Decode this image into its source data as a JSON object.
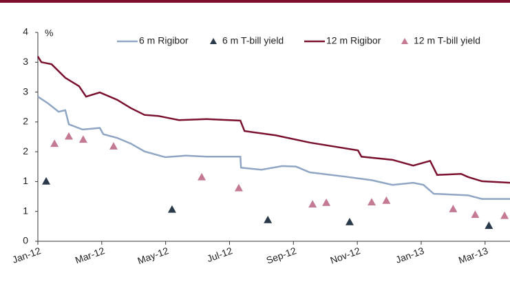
{
  "chart_data": {
    "type": "line",
    "y_unit_label": "%",
    "xlim": [
      0,
      14.78
    ],
    "xticks": [
      {
        "value": 0,
        "label": "Jan-12"
      },
      {
        "value": 2,
        "label": "Mar-12"
      },
      {
        "value": 4,
        "label": "May-12"
      },
      {
        "value": 6,
        "label": "Jul-12"
      },
      {
        "value": 8,
        "label": "Sep-12"
      },
      {
        "value": 10,
        "label": "Nov-12"
      },
      {
        "value": 12,
        "label": "Jan-13"
      },
      {
        "value": 14,
        "label": "Mar-13"
      }
    ],
    "ylim": [
      0,
      4
    ],
    "yticks": [
      0,
      {
        "value": 0.5714,
        "label": "1"
      },
      {
        "value": 1.1429,
        "label": "1"
      },
      {
        "value": 1.7143,
        "label": "2"
      },
      {
        "value": 2.2857,
        "label": "2"
      },
      {
        "value": 2.8571,
        "label": "3"
      },
      {
        "value": 3.4286,
        "label": "3"
      },
      4
    ],
    "grid": false,
    "legend": "top",
    "series": [
      {
        "name": "6 m Rigibor",
        "color": "#8ea5c3",
        "mark": "line",
        "x": [
          0,
          0.32,
          0.65,
          0.86,
          0.97,
          1.4,
          1.94,
          2.05,
          2.48,
          2.91,
          3.34,
          3.99,
          4.63,
          5.28,
          6.34,
          6.36,
          7.0,
          7.65,
          8.08,
          8.51,
          9.59,
          10.45,
          11.1,
          11.75,
          12.07,
          12.39,
          13.47,
          13.9,
          14.78
        ],
        "values": [
          2.77,
          2.64,
          2.48,
          2.51,
          2.24,
          2.14,
          2.17,
          2.05,
          1.98,
          1.87,
          1.72,
          1.61,
          1.64,
          1.62,
          1.62,
          1.41,
          1.37,
          1.44,
          1.43,
          1.32,
          1.24,
          1.17,
          1.08,
          1.12,
          1.08,
          0.91,
          0.88,
          0.81,
          0.81
        ]
      },
      {
        "name": "6 m T-bill yield",
        "color": "#2b3a4a",
        "mark": "triangle",
        "x": [
          0.26,
          4.2,
          7.2,
          9.76,
          14.12
        ],
        "values": [
          1.15,
          0.61,
          0.41,
          0.37,
          0.3
        ]
      },
      {
        "name": "12 m Rigibor",
        "color": "#7a0f2e",
        "mark": "line",
        "x": [
          0,
          0.11,
          0.43,
          0.86,
          1.29,
          1.51,
          1.94,
          2.48,
          2.91,
          3.34,
          3.77,
          4.42,
          5.28,
          6.34,
          6.47,
          7.44,
          8.51,
          10.02,
          10.13,
          11.1,
          11.75,
          12.28,
          12.5,
          13.25,
          13.47,
          13.9,
          14.78
        ],
        "values": [
          3.54,
          3.43,
          3.39,
          3.13,
          2.97,
          2.77,
          2.85,
          2.71,
          2.55,
          2.42,
          2.4,
          2.32,
          2.34,
          2.31,
          2.11,
          2.03,
          1.89,
          1.74,
          1.62,
          1.56,
          1.45,
          1.54,
          1.27,
          1.29,
          1.23,
          1.15,
          1.12
        ]
      },
      {
        "name": "12 m T-bill yield",
        "color": "#c37a92",
        "mark": "triangle",
        "x": [
          0.52,
          0.97,
          1.42,
          2.37,
          5.13,
          6.29,
          8.6,
          9.03,
          10.45,
          10.91,
          13.0,
          13.69,
          14.61
        ],
        "values": [
          1.87,
          2.01,
          1.95,
          1.82,
          1.23,
          1.02,
          0.71,
          0.74,
          0.75,
          0.78,
          0.62,
          0.51,
          0.49
        ]
      }
    ]
  }
}
